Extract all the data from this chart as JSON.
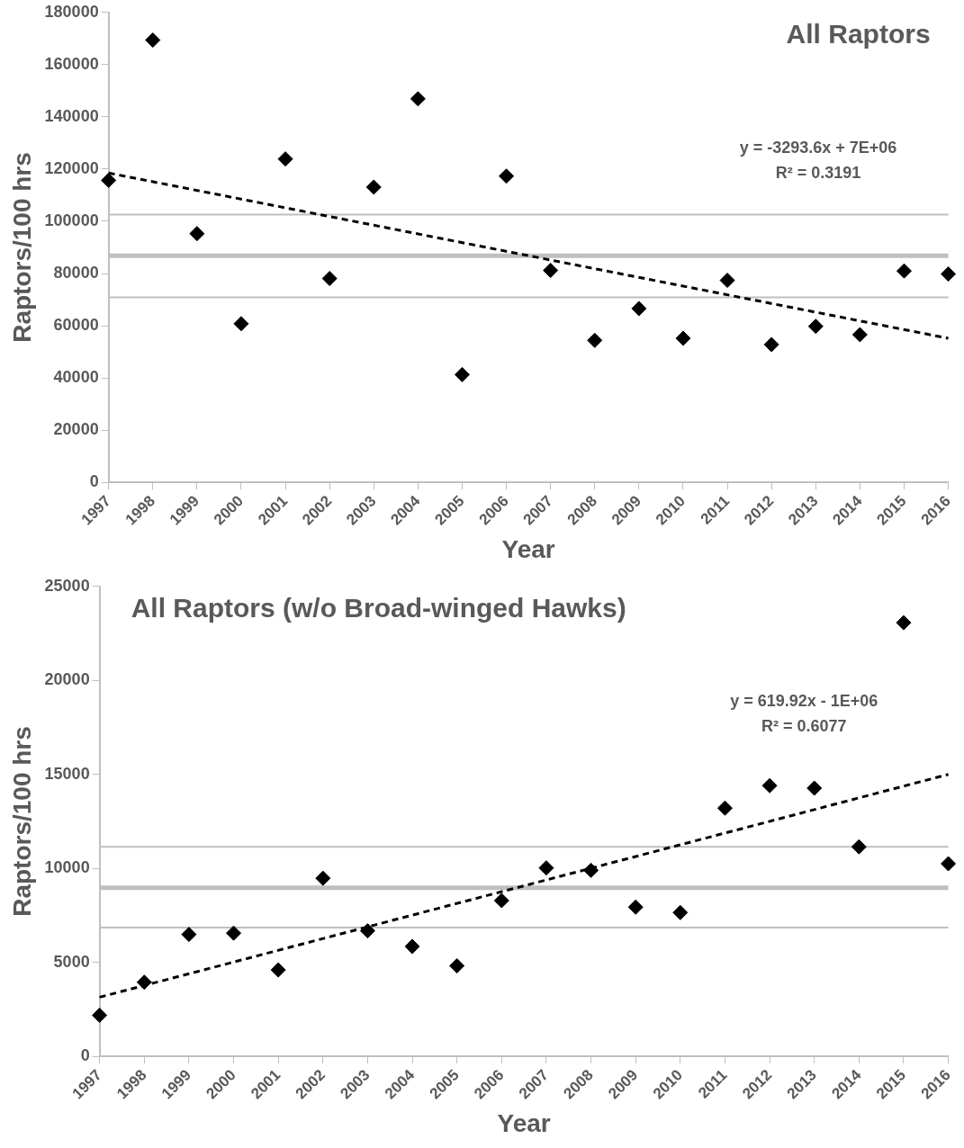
{
  "chart_data": [
    {
      "type": "scatter",
      "title": "All Raptors",
      "xlabel": "Year",
      "ylabel": "Raptors/100 hrs",
      "categories": [
        "1997",
        "1998",
        "1999",
        "2000",
        "2001",
        "2002",
        "2003",
        "2004",
        "2005",
        "2006",
        "2007",
        "2008",
        "2009",
        "2010",
        "2011",
        "2012",
        "2013",
        "2014",
        "2015",
        "2016"
      ],
      "series": [
        {
          "color": "#000000",
          "marker": "diamond",
          "values": [
            115700,
            169400,
            95300,
            60800,
            123900,
            78100,
            113100,
            146900,
            41300,
            117300,
            81200,
            54400,
            66600,
            55200,
            77400,
            52800,
            59800,
            56600,
            81000,
            79800
          ]
        },
        {
          "type": "line",
          "color": "#000000",
          "line_style": "dashed",
          "marker": "none",
          "values": [
            118500,
            null,
            null,
            null,
            null,
            null,
            null,
            null,
            null,
            null,
            null,
            null,
            null,
            null,
            null,
            null,
            null,
            null,
            null,
            55200
          ]
        }
      ],
      "ylim": [
        0,
        180000
      ],
      "yticks": [
        0,
        20000,
        40000,
        60000,
        80000,
        100000,
        120000,
        140000,
        160000,
        180000
      ],
      "ref_lines": [
        {
          "axis": "y",
          "value": 102600,
          "color": "#bfbfbf"
        },
        {
          "axis": "y",
          "value": 86800,
          "color": "#bfbfbf"
        },
        {
          "axis": "y",
          "value": 70900,
          "color": "#bfbfbf"
        }
      ],
      "annotations": [
        "y = -3293.6x + 7E+06",
        "R² = 0.3191"
      ],
      "grid": false,
      "legend": false
    },
    {
      "type": "scatter",
      "title": "All Raptors (w/o Broad-winged Hawks)",
      "xlabel": "Year",
      "ylabel": "Raptors/100 hrs",
      "categories": [
        "1997",
        "1998",
        "1999",
        "2000",
        "2001",
        "2002",
        "2003",
        "2004",
        "2005",
        "2006",
        "2007",
        "2008",
        "2009",
        "2010",
        "2011",
        "2012",
        "2013",
        "2014",
        "2015",
        "2016"
      ],
      "series": [
        {
          "color": "#000000",
          "marker": "diamond",
          "values": [
            2190,
            3950,
            6490,
            6560,
            4600,
            9480,
            6680,
            5850,
            4820,
            8290,
            10030,
            9900,
            7940,
            7650,
            13210,
            14400,
            14270,
            11150,
            23070,
            10250
          ]
        },
        {
          "type": "line",
          "color": "#000000",
          "line_style": "dashed",
          "marker": "none",
          "values": [
            3150,
            null,
            null,
            null,
            null,
            null,
            null,
            null,
            null,
            null,
            null,
            null,
            null,
            null,
            null,
            null,
            null,
            null,
            null,
            15000
          ]
        }
      ],
      "ylim": [
        0,
        25000
      ],
      "yticks": [
        0,
        5000,
        10000,
        15000,
        20000,
        25000
      ],
      "ref_lines": [
        {
          "axis": "y",
          "value": 11150,
          "color": "#bfbfbf"
        },
        {
          "axis": "y",
          "value": 8970,
          "color": "#bfbfbf"
        },
        {
          "axis": "y",
          "value": 6850,
          "color": "#bfbfbf"
        }
      ],
      "annotations": [
        "y = 619.92x - 1E+06",
        "R² = 0.6077"
      ],
      "grid": false,
      "legend": false
    }
  ]
}
